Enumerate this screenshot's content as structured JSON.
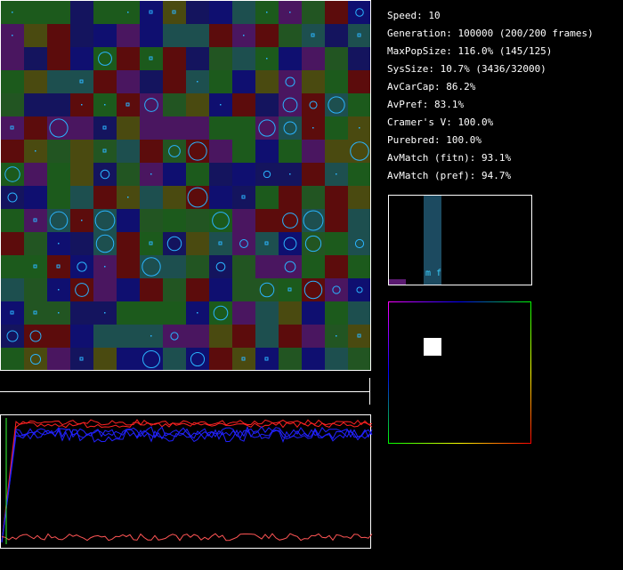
{
  "stats": [
    "Speed: 10",
    "Generation: 100000 (200/200 frames)",
    "MaxPopSize: 116.0% (145/125)",
    "SysSize: 10.7% (3436/32000)",
    "AvCarCap: 86.2%",
    "AvPref: 83.1%",
    "Cramer's V: 100.0%",
    "Purebred: 100.0%",
    "AvMatch (fitn): 93.1%",
    "AvMatch (pref): 94.7%"
  ],
  "histogram": {
    "label": "m f"
  }
}
